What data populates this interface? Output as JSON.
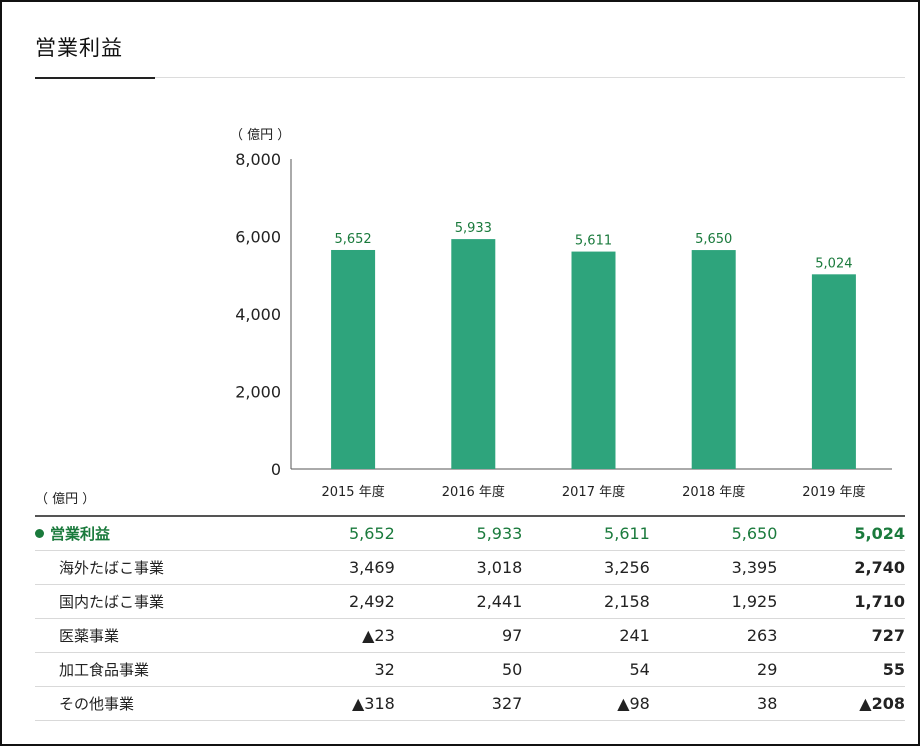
{
  "page": {
    "title": "営業利益",
    "chart_unit": "（ 億円 ）",
    "table_unit": "（ 億円 ）"
  },
  "colors": {
    "bar": "#2ea47c",
    "label": "#1a7a3c"
  },
  "chart_data": {
    "type": "bar",
    "title": "営業利益",
    "ylabel": "（ 億円 ）",
    "categories": [
      "2015 年度",
      "2016 年度",
      "2017 年度",
      "2018 年度",
      "2019 年度"
    ],
    "values": [
      5652,
      5933,
      5611,
      5650,
      5024
    ],
    "value_labels": [
      "5,652",
      "5,933",
      "5,611",
      "5,650",
      "5,024"
    ],
    "ylim": [
      0,
      8000
    ],
    "yticks": [
      0,
      2000,
      4000,
      6000,
      8000
    ],
    "ytick_labels": [
      "0",
      "2,000",
      "4,000",
      "6,000",
      "8,000"
    ],
    "grid": false
  },
  "table": {
    "rows": [
      {
        "label": "営業利益",
        "values": [
          "5,652",
          "5,933",
          "5,611",
          "5,650",
          "5,024"
        ],
        "main": true
      },
      {
        "label": "海外たばこ事業",
        "values": [
          "3,469",
          "3,018",
          "3,256",
          "3,395",
          "2,740"
        ]
      },
      {
        "label": "国内たばこ事業",
        "values": [
          "2,492",
          "2,441",
          "2,158",
          "1,925",
          "1,710"
        ]
      },
      {
        "label": "医薬事業",
        "values": [
          "▲23",
          "97",
          "241",
          "263",
          "727"
        ]
      },
      {
        "label": "加工食品事業",
        "values": [
          "32",
          "50",
          "54",
          "29",
          "55"
        ]
      },
      {
        "label": "その他事業",
        "values": [
          "▲318",
          "327",
          "▲98",
          "38",
          "▲208"
        ]
      }
    ]
  }
}
